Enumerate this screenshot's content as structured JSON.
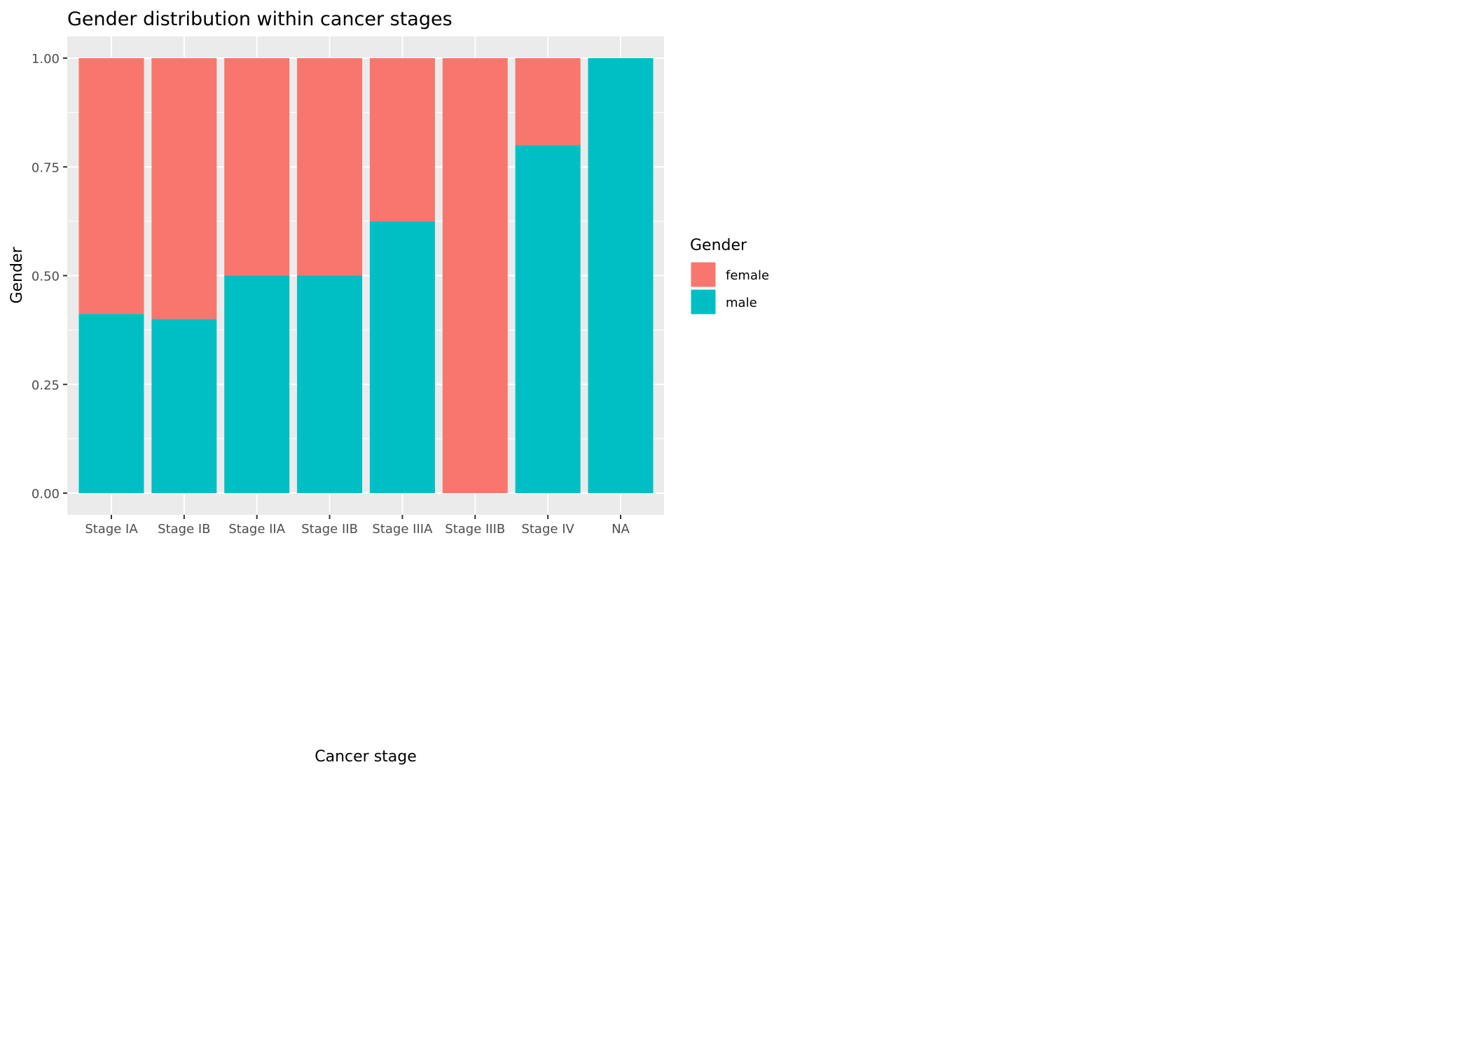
{
  "chart_data": {
    "type": "bar",
    "stacked": true,
    "position": "fill",
    "title": "Gender distribution within cancer stages",
    "xlabel": "Cancer stage",
    "ylabel": "Gender",
    "ylim": [
      0,
      1
    ],
    "y_ticks": [
      "0.00",
      "0.25",
      "0.50",
      "0.75",
      "1.00"
    ],
    "categories": [
      "Stage IA",
      "Stage IB",
      "Stage IIA",
      "Stage IIB",
      "Stage IIIA",
      "Stage IIIB",
      "Stage IV",
      "NA"
    ],
    "series": [
      {
        "name": "male",
        "color": "#00BFC4",
        "values": [
          0.412,
          0.4,
          0.5,
          0.5,
          0.625,
          0.0,
          0.8,
          1.0
        ]
      },
      {
        "name": "female",
        "color": "#F8766D",
        "values": [
          0.588,
          0.6,
          0.5,
          0.5,
          0.375,
          1.0,
          0.2,
          0.0
        ]
      }
    ],
    "legend": {
      "title": "Gender",
      "placement": "right",
      "entries": [
        {
          "label": "female",
          "color": "#F8766D"
        },
        {
          "label": "male",
          "color": "#00BFC4"
        }
      ]
    },
    "grid": true,
    "panel_background": "#EBEBEB"
  }
}
